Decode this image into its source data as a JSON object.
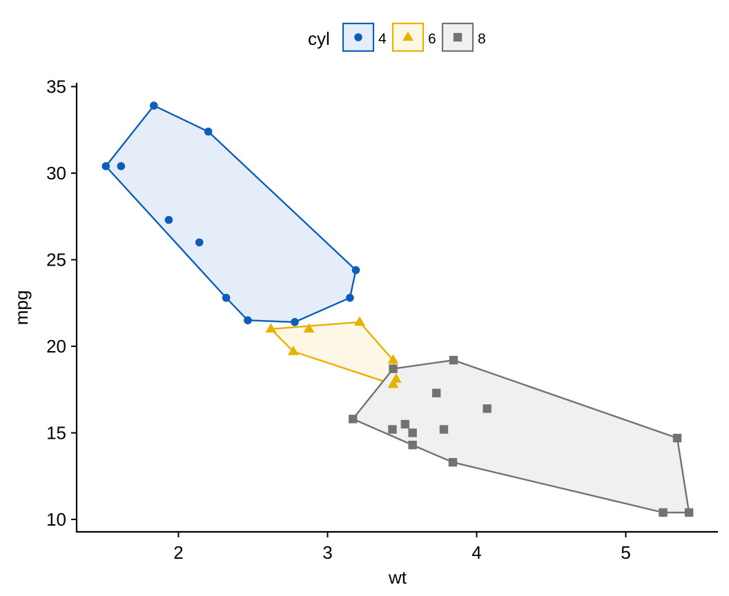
{
  "chart_data": {
    "type": "scatter",
    "title": "",
    "xlabel": "wt",
    "ylabel": "mpg",
    "xlim": [
      1.3,
      5.6
    ],
    "ylim": [
      9.3,
      35.1
    ],
    "x_ticks": [
      2,
      3,
      4,
      5
    ],
    "y_ticks": [
      10,
      15,
      20,
      25,
      30,
      35
    ],
    "grid": false,
    "hulls": true,
    "legend": {
      "title": "cyl",
      "position": "top",
      "entries": [
        {
          "label": "4",
          "shape": "circle",
          "color": "#0c5eb8",
          "fill": "#e5eef8"
        },
        {
          "label": "6",
          "shape": "triangle",
          "color": "#e7b100",
          "fill": "#fdf7e5"
        },
        {
          "label": "8",
          "shape": "square",
          "color": "#727272",
          "fill": "#f0f0f0"
        }
      ]
    },
    "series": [
      {
        "name": "4",
        "points": [
          [
            1.513,
            30.4
          ],
          [
            1.615,
            30.4
          ],
          [
            1.835,
            33.9
          ],
          [
            1.935,
            27.3
          ],
          [
            2.14,
            26.0
          ],
          [
            2.2,
            32.4
          ],
          [
            2.32,
            22.8
          ],
          [
            2.465,
            21.5
          ],
          [
            2.78,
            21.4
          ],
          [
            3.15,
            22.8
          ],
          [
            3.19,
            24.4
          ]
        ]
      },
      {
        "name": "6",
        "points": [
          [
            2.62,
            21.0
          ],
          [
            2.77,
            19.7
          ],
          [
            2.875,
            21.0
          ],
          [
            3.215,
            21.4
          ],
          [
            3.44,
            19.2
          ],
          [
            3.44,
            17.8
          ],
          [
            3.46,
            18.1
          ]
        ]
      },
      {
        "name": "8",
        "points": [
          [
            3.17,
            15.8
          ],
          [
            3.435,
            15.2
          ],
          [
            3.44,
            18.7
          ],
          [
            3.52,
            15.5
          ],
          [
            3.57,
            14.3
          ],
          [
            3.57,
            15.0
          ],
          [
            3.73,
            17.3
          ],
          [
            3.78,
            15.2
          ],
          [
            3.84,
            13.3
          ],
          [
            3.845,
            19.2
          ],
          [
            4.07,
            16.4
          ],
          [
            5.25,
            10.4
          ],
          [
            5.345,
            14.7
          ],
          [
            5.424,
            10.4
          ]
        ]
      }
    ]
  }
}
